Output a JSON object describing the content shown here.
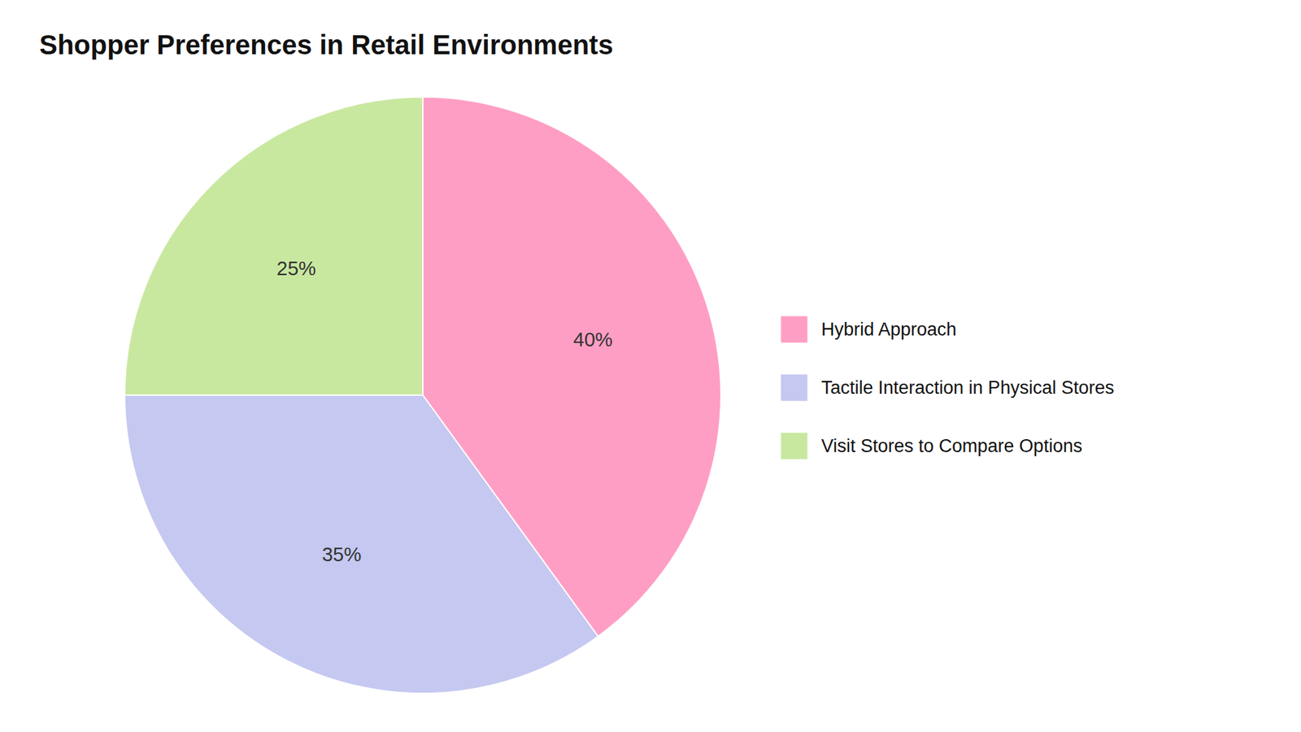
{
  "chart_data": {
    "type": "pie",
    "title": "Shopper Preferences in Retail Environments",
    "categories": [
      "Hybrid Approach",
      "Tactile Interaction in Physical Stores",
      "Visit Stores to Compare Options"
    ],
    "values": [
      40,
      35,
      25
    ],
    "value_labels": [
      "40%",
      "35%",
      "25%"
    ],
    "colors": [
      "#FF9EC4",
      "#C5C8F0",
      "#C8E8A0"
    ],
    "data_labels": true,
    "legend": "right"
  }
}
